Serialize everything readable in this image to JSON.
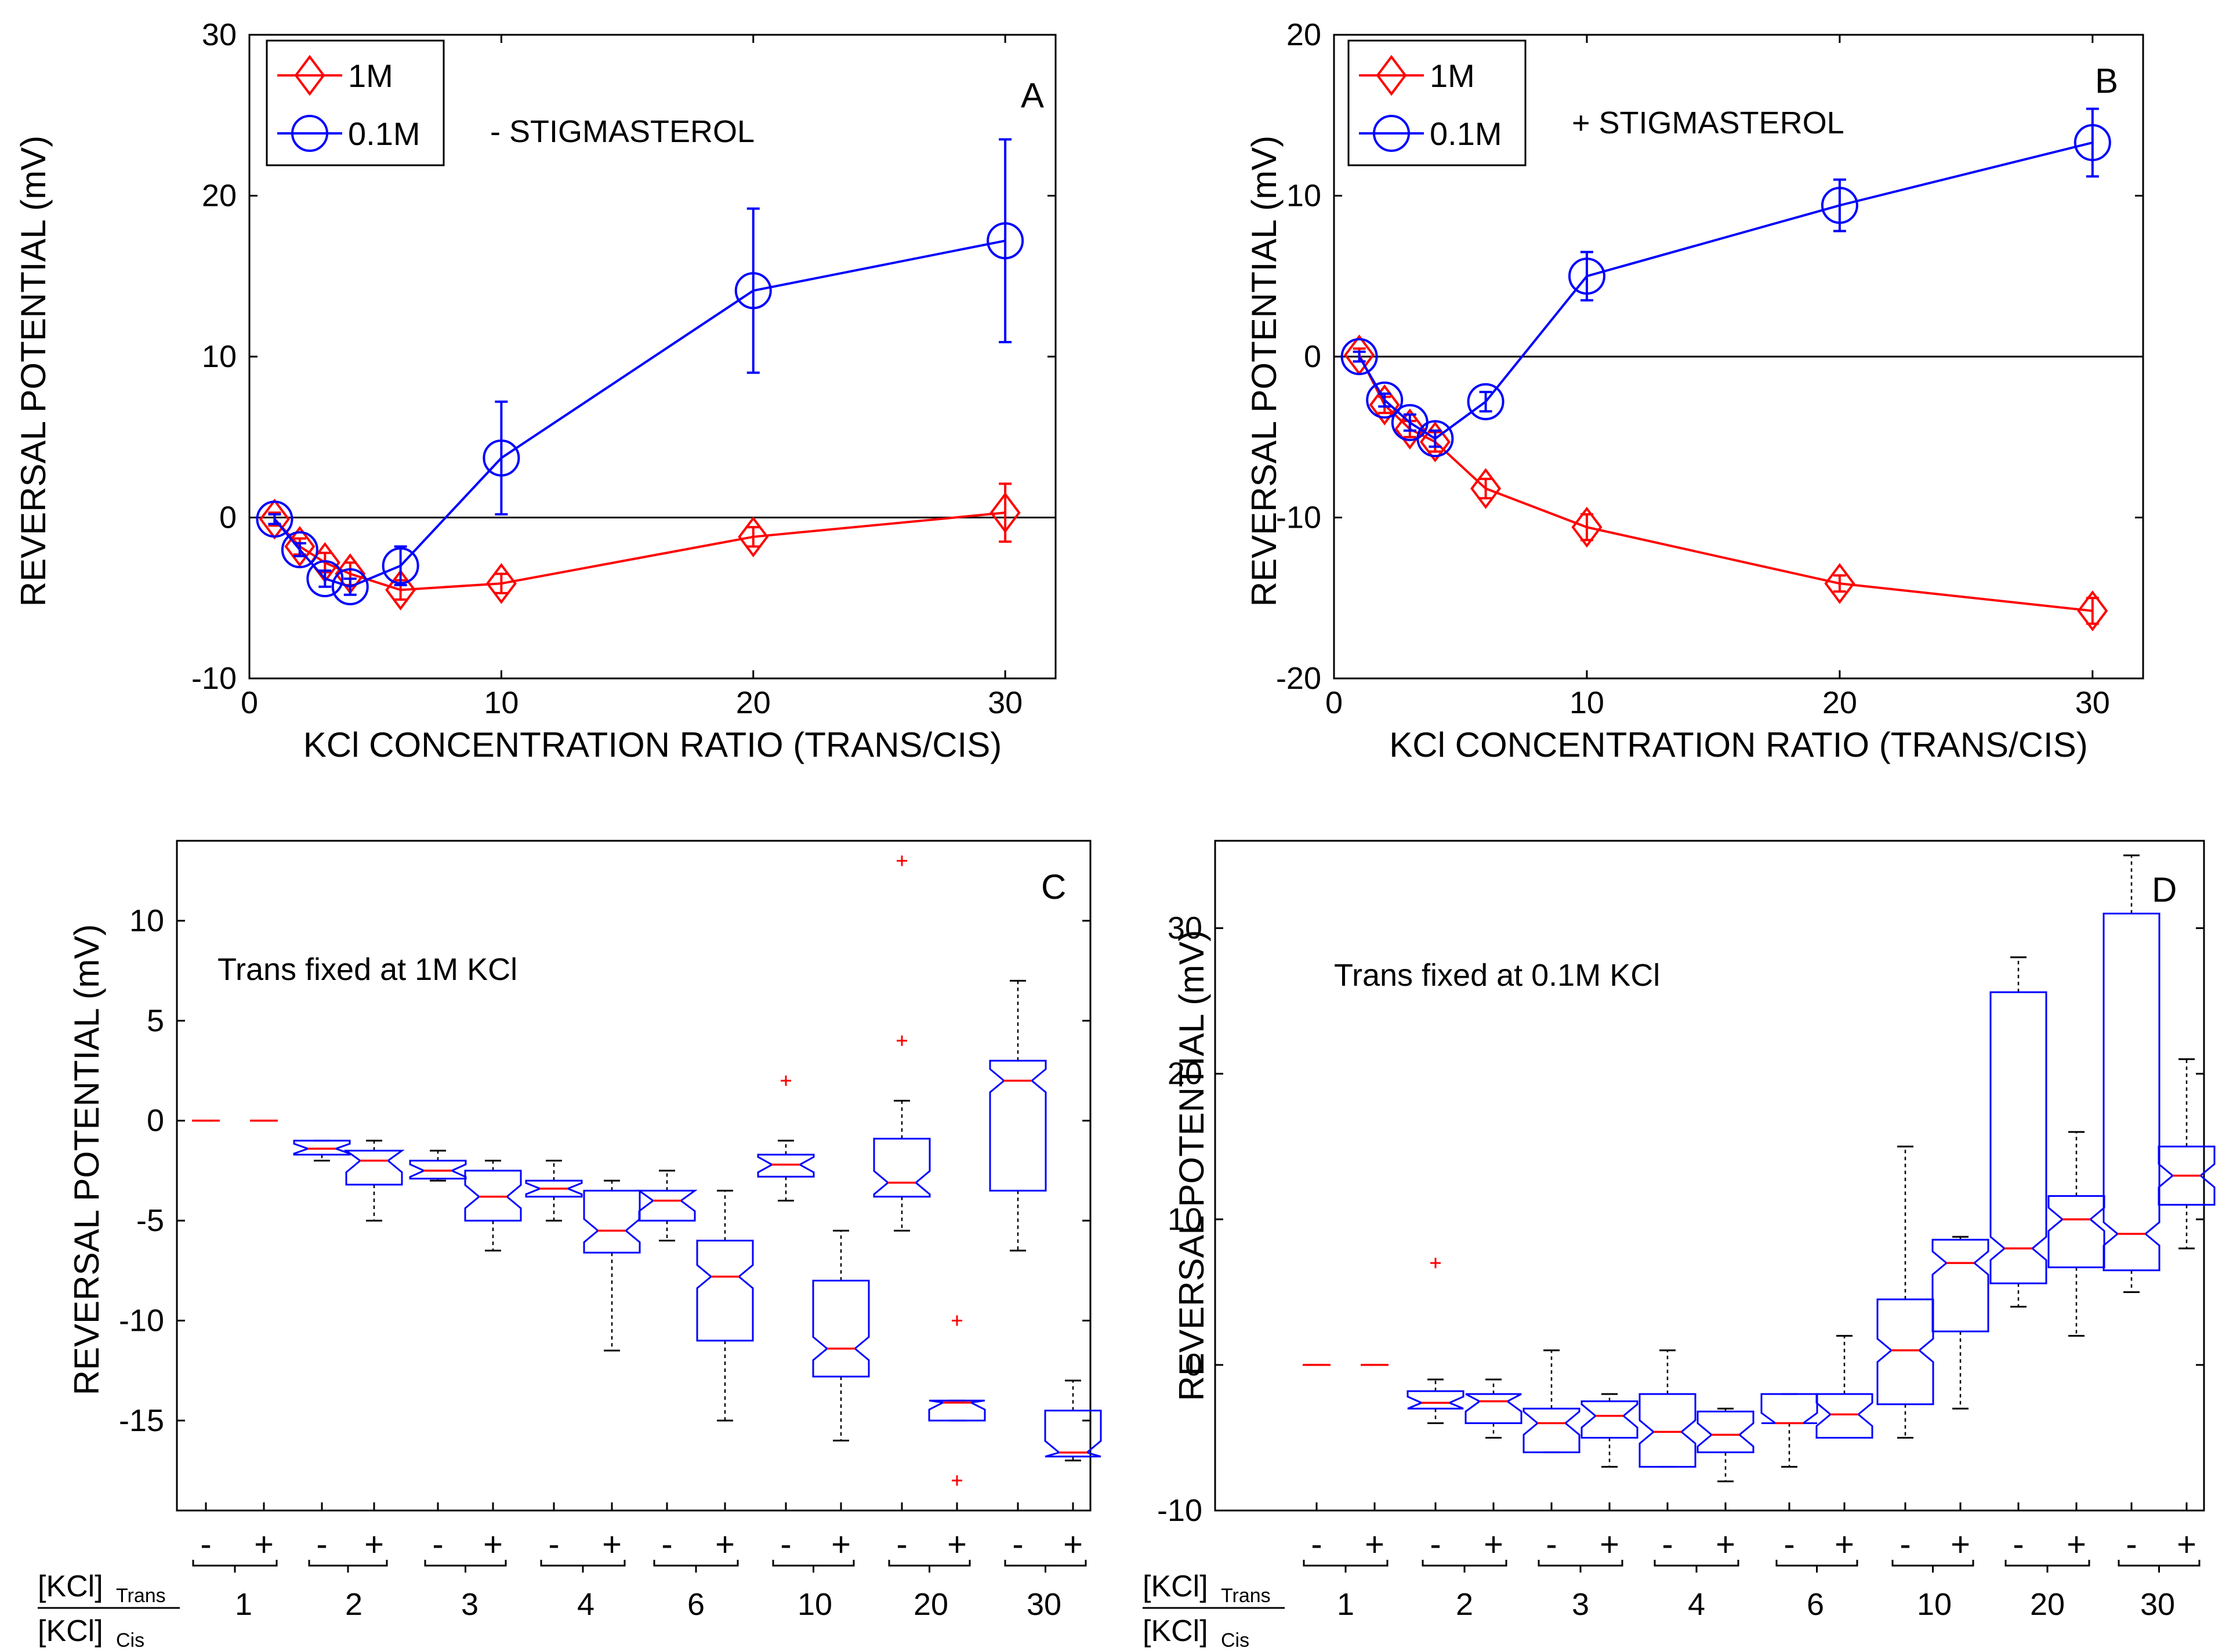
{
  "colors": {
    "red": "#ff0000",
    "blue": "#0000ff",
    "black": "#000000"
  },
  "chart_data": [
    {
      "panel": "A",
      "type": "line",
      "title": "",
      "annotation": "- STIGMASTEROL",
      "xlabel": "KCl CONCENTRATION RATIO (TRANS/CIS)",
      "ylabel": "REVERSAL POTENTIAL (mV)",
      "xlim": [
        0,
        32
      ],
      "ylim": [
        -10,
        30
      ],
      "xticks": [
        0,
        10,
        20,
        30
      ],
      "yticks": [
        -10,
        0,
        10,
        20,
        30
      ],
      "legend": "top-left",
      "x": [
        1,
        2,
        3,
        4,
        6,
        10,
        20,
        30
      ],
      "series": [
        {
          "name": "1M",
          "marker": "diamond",
          "color": "#ff0000",
          "values": [
            -0.1,
            -1.8,
            -2.8,
            -3.5,
            -4.5,
            -4.1,
            -1.2,
            0.3
          ],
          "errors": [
            0.4,
            0.5,
            0.6,
            0.7,
            0.6,
            0.6,
            0.6,
            1.8
          ]
        },
        {
          "name": "0.1M",
          "marker": "circle",
          "color": "#0000ff",
          "values": [
            -0.1,
            -2.0,
            -3.8,
            -4.3,
            -3.0,
            3.7,
            14.1,
            17.2
          ],
          "errors": [
            0.3,
            0.4,
            0.5,
            0.5,
            1.2,
            3.5,
            5.1,
            6.3
          ]
        }
      ]
    },
    {
      "panel": "B",
      "type": "line",
      "title": "",
      "annotation": "+ STIGMASTEROL",
      "xlabel": "KCl CONCENTRATION RATIO (TRANS/CIS)",
      "ylabel": "REVERSAL POTENTIAL (mV)",
      "xlim": [
        0,
        32
      ],
      "ylim": [
        -20,
        20
      ],
      "xticks": [
        0,
        10,
        20,
        30
      ],
      "yticks": [
        -20,
        -10,
        0,
        10,
        20
      ],
      "legend": "top-left",
      "x": [
        1,
        2,
        3,
        4,
        6,
        10,
        20,
        30
      ],
      "series": [
        {
          "name": "1M",
          "marker": "diamond",
          "color": "#ff0000",
          "values": [
            0.1,
            -3.0,
            -4.5,
            -5.3,
            -8.2,
            -10.6,
            -14.1,
            -15.8
          ],
          "errors": [
            0.4,
            0.5,
            0.5,
            0.6,
            0.6,
            0.8,
            0.5,
            0.8
          ]
        },
        {
          "name": "0.1M",
          "marker": "circle",
          "color": "#0000ff",
          "values": [
            0.0,
            -2.7,
            -4.1,
            -5.1,
            -2.8,
            5.0,
            9.4,
            13.3
          ],
          "errors": [
            0.3,
            0.4,
            0.5,
            0.5,
            0.6,
            1.5,
            1.6,
            2.1
          ]
        }
      ]
    },
    {
      "panel": "C",
      "type": "box",
      "annotation": "Trans fixed at 1M KCl",
      "ylabel": "REVERSAL POTENTIAL (mV)",
      "ylim": [
        -19.5,
        14
      ],
      "yticks": [
        -15,
        -10,
        -5,
        0,
        5,
        10
      ],
      "group_labels": [
        "1",
        "2",
        "3",
        "4",
        "6",
        "10",
        "20",
        "30"
      ],
      "pair_labels": [
        "-",
        "+"
      ],
      "ratio_label": {
        "top": "[KCl]",
        "top_sub": "Trans",
        "bottom": "[KCl]",
        "bottom_sub": "Cis"
      },
      "boxes": [
        {
          "group": "1",
          "sign": "-",
          "lw": 0,
          "q1": 0,
          "med": 0,
          "q3": 0,
          "uw": 0,
          "outliers": []
        },
        {
          "group": "1",
          "sign": "+",
          "lw": 0,
          "q1": 0,
          "med": 0,
          "q3": 0,
          "uw": 0,
          "outliers": []
        },
        {
          "group": "2",
          "sign": "-",
          "lw": -2,
          "q1": -1.7,
          "med": -1.4,
          "q3": -1,
          "uw": -1,
          "outliers": []
        },
        {
          "group": "2",
          "sign": "+",
          "lw": -5,
          "q1": -3.2,
          "med": -2,
          "q3": -1.5,
          "uw": -1,
          "outliers": []
        },
        {
          "group": "3",
          "sign": "-",
          "lw": -3,
          "q1": -2.9,
          "med": -2.5,
          "q3": -2,
          "uw": -1.5,
          "outliers": []
        },
        {
          "group": "3",
          "sign": "+",
          "lw": -6.5,
          "q1": -5,
          "med": -3.8,
          "q3": -2.5,
          "uw": -2,
          "outliers": []
        },
        {
          "group": "4",
          "sign": "-",
          "lw": -5,
          "q1": -3.8,
          "med": -3.4,
          "q3": -3,
          "uw": -2,
          "outliers": []
        },
        {
          "group": "4",
          "sign": "+",
          "lw": -11.5,
          "q1": -6.6,
          "med": -5.5,
          "q3": -3.5,
          "uw": -3,
          "outliers": []
        },
        {
          "group": "6",
          "sign": "-",
          "lw": -6,
          "q1": -5,
          "med": -4,
          "q3": -3.5,
          "uw": -2.5,
          "outliers": []
        },
        {
          "group": "6",
          "sign": "+",
          "lw": -15,
          "q1": -11,
          "med": -7.8,
          "q3": -6,
          "uw": -3.5,
          "outliers": []
        },
        {
          "group": "10",
          "sign": "-",
          "lw": -4,
          "q1": -2.8,
          "med": -2.2,
          "q3": -1.7,
          "uw": -1,
          "outliers": [
            2
          ]
        },
        {
          "group": "10",
          "sign": "+",
          "lw": -16,
          "q1": -12.8,
          "med": -11.4,
          "q3": -8,
          "uw": -5.5,
          "outliers": []
        },
        {
          "group": "20",
          "sign": "-",
          "lw": -5.5,
          "q1": -3.8,
          "med": -3.1,
          "q3": -0.9,
          "uw": 1,
          "outliers": [
            4,
            13
          ]
        },
        {
          "group": "20",
          "sign": "+",
          "lw": -15,
          "q1": -15,
          "med": -14.1,
          "q3": -14,
          "uw": -14,
          "outliers": [
            -10,
            -18
          ]
        },
        {
          "group": "30",
          "sign": "-",
          "lw": -6.5,
          "q1": -3.5,
          "med": 2,
          "q3": 3,
          "uw": 7,
          "outliers": []
        },
        {
          "group": "30",
          "sign": "+",
          "lw": -17,
          "q1": -16.8,
          "med": -16.6,
          "q3": -14.5,
          "uw": -13,
          "outliers": []
        }
      ]
    },
    {
      "panel": "D",
      "type": "box",
      "annotation": "Trans fixed at 0.1M KCl",
      "ylabel": "REVERSAL POTENTIAL (mV)",
      "ylim": [
        -10,
        36
      ],
      "yticks": [
        -10,
        0,
        10,
        20,
        30
      ],
      "group_labels": [
        "1",
        "2",
        "3",
        "4",
        "6",
        "10",
        "20",
        "30"
      ],
      "pair_labels": [
        "-",
        "+"
      ],
      "ratio_label": {
        "top": "[KCl]",
        "top_sub": "Trans",
        "bottom": "[KCl]",
        "bottom_sub": "Cis"
      },
      "boxes": [
        {
          "group": "1",
          "sign": "-",
          "lw": 0,
          "q1": 0,
          "med": 0,
          "q3": 0,
          "uw": 0,
          "outliers": []
        },
        {
          "group": "1",
          "sign": "+",
          "lw": 0,
          "q1": 0,
          "med": 0,
          "q3": 0,
          "uw": 0,
          "outliers": []
        },
        {
          "group": "2",
          "sign": "-",
          "lw": -4,
          "q1": -3,
          "med": -2.6,
          "q3": -1.8,
          "uw": -1,
          "outliers": [
            7
          ]
        },
        {
          "group": "2",
          "sign": "+",
          "lw": -5,
          "q1": -4,
          "med": -2.5,
          "q3": -2,
          "uw": -1,
          "outliers": []
        },
        {
          "group": "3",
          "sign": "-",
          "lw": -6,
          "q1": -6,
          "med": -4,
          "q3": -3,
          "uw": 1,
          "outliers": []
        },
        {
          "group": "3",
          "sign": "+",
          "lw": -7,
          "q1": -5,
          "med": -3.5,
          "q3": -2.5,
          "uw": -2,
          "outliers": []
        },
        {
          "group": "4",
          "sign": "-",
          "lw": -7,
          "q1": -7,
          "med": -4.6,
          "q3": -2,
          "uw": 1,
          "outliers": []
        },
        {
          "group": "4",
          "sign": "+",
          "lw": -8,
          "q1": -6,
          "med": -4.8,
          "q3": -3.2,
          "uw": -3,
          "outliers": []
        },
        {
          "group": "6",
          "sign": "-",
          "lw": -7,
          "q1": -4,
          "med": -4,
          "q3": -2,
          "uw": -2,
          "outliers": []
        },
        {
          "group": "6",
          "sign": "+",
          "lw": -5,
          "q1": -5,
          "med": -3.4,
          "q3": -2,
          "uw": 2,
          "outliers": []
        },
        {
          "group": "10",
          "sign": "-",
          "lw": -5,
          "q1": -2.7,
          "med": 1,
          "q3": 4.5,
          "uw": 15,
          "outliers": []
        },
        {
          "group": "10",
          "sign": "+",
          "lw": -3,
          "q1": 2.3,
          "med": 7,
          "q3": 8.6,
          "uw": 8.8,
          "outliers": []
        },
        {
          "group": "20",
          "sign": "-",
          "lw": 4,
          "q1": 5.6,
          "med": 8,
          "q3": 25.6,
          "uw": 28,
          "outliers": []
        },
        {
          "group": "20",
          "sign": "+",
          "lw": 2,
          "q1": 6.7,
          "med": 10,
          "q3": 11.6,
          "uw": 16,
          "outliers": []
        },
        {
          "group": "30",
          "sign": "-",
          "lw": 5,
          "q1": 6.5,
          "med": 9,
          "q3": 31,
          "uw": 35,
          "outliers": []
        },
        {
          "group": "30",
          "sign": "+",
          "lw": 8,
          "q1": 11,
          "med": 13,
          "q3": 15,
          "uw": 21,
          "outliers": []
        }
      ]
    }
  ]
}
